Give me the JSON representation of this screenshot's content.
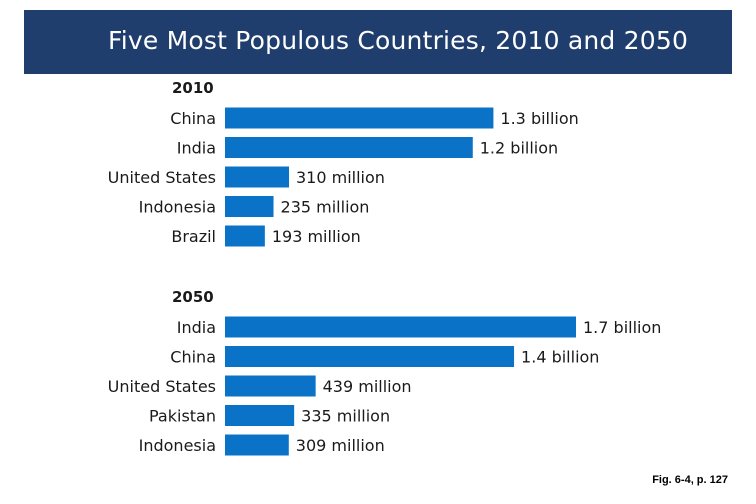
{
  "title": "Five Most Populous Countries, 2010 and 2050",
  "caption": "Fig. 6-4, p. 127",
  "colors": {
    "banner": "#1f3d6d",
    "bar": "#0a73c8",
    "text": "#1a1a1a"
  },
  "chart_data": [
    {
      "type": "bar",
      "orientation": "horizontal",
      "title": "2010",
      "unit": "population",
      "categories": [
        "China",
        "India",
        "United States",
        "Indonesia",
        "Brazil"
      ],
      "values": [
        1300000000,
        1200000000,
        310000000,
        235000000,
        193000000
      ],
      "value_labels": [
        "1.3 billion",
        "1.2 billion",
        "310 million",
        "235 million",
        "193 million"
      ],
      "xlim": [
        0,
        1800000000
      ],
      "grid": false,
      "legend": "none"
    },
    {
      "type": "bar",
      "orientation": "horizontal",
      "title": "2050",
      "unit": "population",
      "categories": [
        "India",
        "China",
        "United States",
        "Pakistan",
        "Indonesia"
      ],
      "values": [
        1700000000,
        1400000000,
        439000000,
        335000000,
        309000000
      ],
      "value_labels": [
        "1.7 billion",
        "1.4 billion",
        "439 million",
        "335 million",
        "309 million"
      ],
      "xlim": [
        0,
        1800000000
      ],
      "grid": false,
      "legend": "none"
    }
  ]
}
